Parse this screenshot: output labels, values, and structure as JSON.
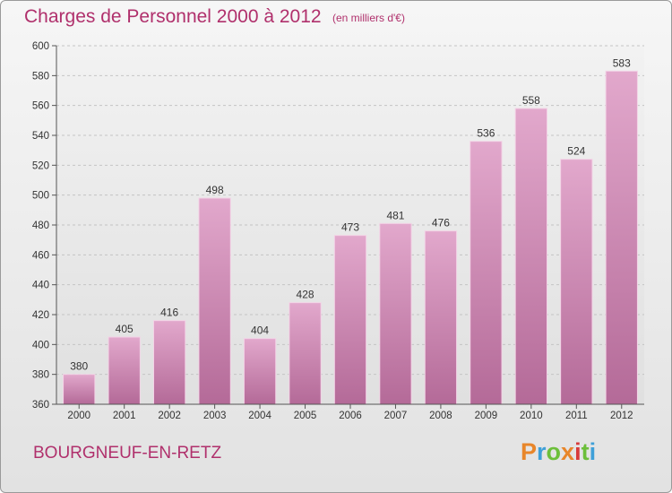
{
  "header": {
    "title": "Charges de Personnel 2000 à 2012",
    "subtitle": "(en milliers d'€)"
  },
  "footer": {
    "commune": "BOURGNEUF-EN-RETZ",
    "logo_text": "Proxiti",
    "logo_colors": [
      "#e8862a",
      "#3fa0d8",
      "#6cbf3a",
      "#e8862a",
      "#d83a3a",
      "#6cbf3a",
      "#3fa0d8"
    ]
  },
  "chart_data": {
    "type": "bar",
    "title": "Charges de Personnel 2000 à 2012",
    "xlabel": "",
    "ylabel": "",
    "categories": [
      "2000",
      "2001",
      "2002",
      "2003",
      "2004",
      "2005",
      "2006",
      "2007",
      "2008",
      "2009",
      "2010",
      "2011",
      "2012"
    ],
    "values": [
      380,
      405,
      416,
      498,
      404,
      428,
      473,
      481,
      476,
      536,
      558,
      524,
      583
    ],
    "ylim": [
      360,
      600
    ],
    "yticks": [
      360,
      380,
      400,
      420,
      440,
      460,
      480,
      500,
      520,
      540,
      560,
      580,
      600
    ],
    "grid": true,
    "bar_color": "#c0649a"
  }
}
